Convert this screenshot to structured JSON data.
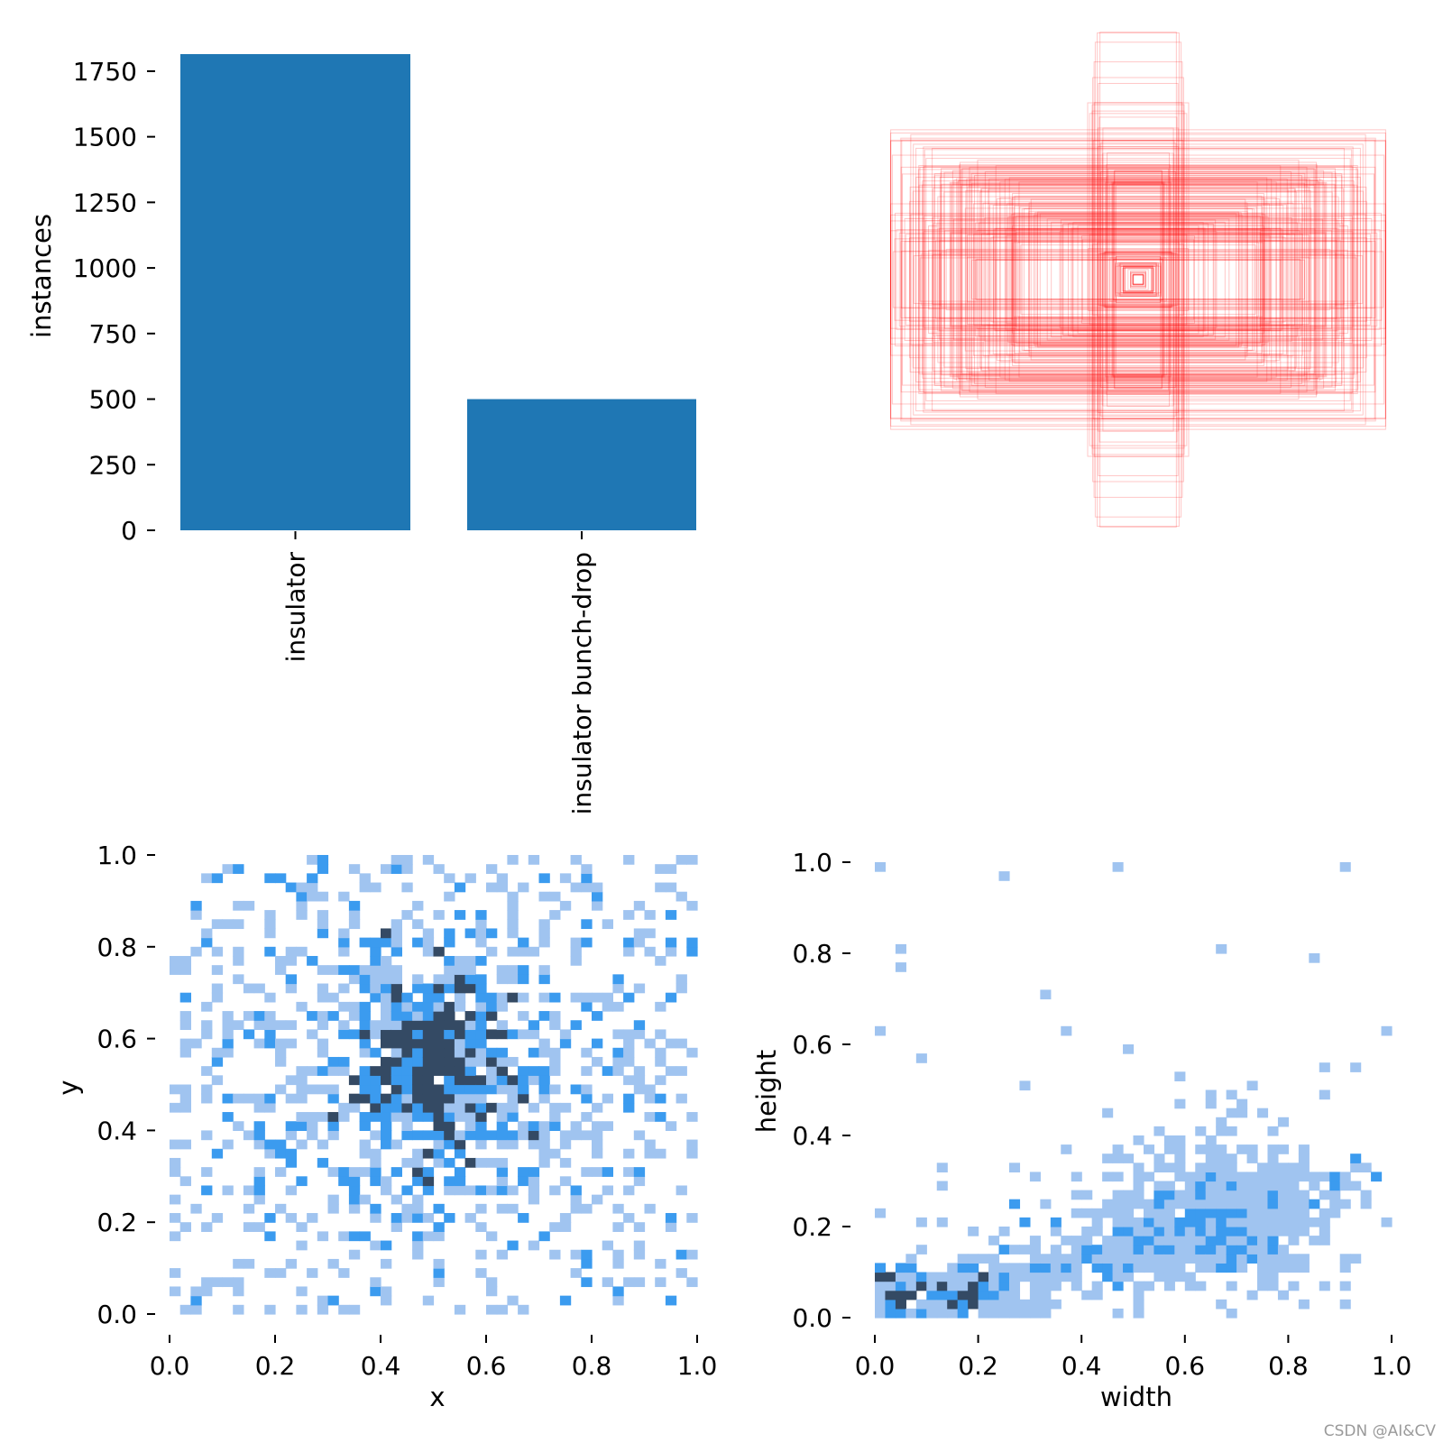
{
  "colors": {
    "bar": "#1f77b4",
    "box": "#ff0000",
    "hist_light": "#a0c4f0",
    "hist_mid": "#3b9bef",
    "hist_dark": "#344a64"
  },
  "watermark": "CSDN @AI&CV",
  "chart_data": [
    {
      "type": "bar",
      "title": "",
      "xlabel": "",
      "ylabel": "instances",
      "categories": [
        "insulator",
        "insulator bunch-drop"
      ],
      "values": [
        1815,
        500
      ],
      "ylim": [
        0,
        1815
      ],
      "yticks": [
        0,
        250,
        500,
        750,
        1000,
        1250,
        1500,
        1750
      ],
      "ytick_labels": [
        "0",
        "250",
        "500",
        "750",
        "1000",
        "1250",
        "1500",
        "1750"
      ],
      "grid": false
    },
    {
      "type": "heatmap",
      "title": "",
      "description_type": "bounding-box overlay (labels.jpg style), boxes centered, width/height in normalized units",
      "boxes": [
        [
          0.94,
          0.56
        ],
        [
          0.84,
          0.48
        ],
        [
          0.88,
          0.52
        ],
        [
          0.78,
          0.44
        ],
        [
          0.72,
          0.4
        ],
        [
          0.66,
          0.42
        ],
        [
          0.62,
          0.36
        ],
        [
          0.56,
          0.32
        ],
        [
          0.52,
          0.3
        ],
        [
          0.46,
          0.28
        ],
        [
          0.4,
          0.26
        ],
        [
          0.36,
          0.24
        ],
        [
          0.3,
          0.22
        ],
        [
          0.26,
          0.2
        ],
        [
          0.22,
          0.16
        ],
        [
          0.18,
          0.14
        ],
        [
          0.14,
          0.1
        ],
        [
          0.1,
          0.08
        ],
        [
          0.08,
          0.06
        ],
        [
          0.06,
          0.05
        ],
        [
          0.04,
          0.04
        ],
        [
          0.03,
          0.03
        ],
        [
          0.02,
          0.02
        ],
        [
          0.17,
          0.94
        ],
        [
          0.18,
          0.8
        ],
        [
          0.2,
          0.7
        ],
        [
          0.16,
          0.6
        ],
        [
          0.14,
          0.5
        ],
        [
          0.12,
          0.44
        ],
        [
          0.1,
          0.38
        ],
        [
          0.6,
          0.18
        ],
        [
          0.7,
          0.2
        ],
        [
          0.8,
          0.22
        ],
        [
          0.9,
          0.26
        ],
        [
          0.98,
          0.3
        ],
        [
          0.5,
          0.16
        ],
        [
          0.64,
          0.08
        ],
        [
          0.76,
          0.12
        ],
        [
          0.86,
          0.1
        ],
        [
          0.92,
          0.18
        ]
      ]
    },
    {
      "type": "heatmap",
      "title": "",
      "xlabel": "x",
      "ylabel": "y",
      "xlim": [
        0,
        1
      ],
      "ylim": [
        0,
        1
      ],
      "xticks": [
        0.0,
        0.2,
        0.4,
        0.6,
        0.8,
        1.0
      ],
      "xtick_labels": [
        "0.0",
        "0.2",
        "0.4",
        "0.6",
        "0.8",
        "1.0"
      ],
      "yticks": [
        0.0,
        0.2,
        0.4,
        0.6,
        0.8,
        1.0
      ],
      "ytick_labels": [
        "0.0",
        "0.2",
        "0.4",
        "0.6",
        "0.8",
        "1.0"
      ],
      "bins": 50,
      "density_peak": [
        0.5,
        0.57
      ],
      "grid": false
    },
    {
      "type": "heatmap",
      "title": "",
      "xlabel": "width",
      "ylabel": "height",
      "xlim": [
        0,
        1
      ],
      "ylim": [
        0,
        1
      ],
      "xticks": [
        0.0,
        0.2,
        0.4,
        0.6,
        0.8,
        1.0
      ],
      "xtick_labels": [
        "0.0",
        "0.2",
        "0.4",
        "0.6",
        "0.8",
        "1.0"
      ],
      "yticks": [
        0.0,
        0.2,
        0.4,
        0.6,
        0.8,
        1.0
      ],
      "ytick_labels": [
        "0.0",
        "0.2",
        "0.4",
        "0.6",
        "0.8",
        "1.0"
      ],
      "bins": 50,
      "density_peaks": [
        [
          0.05,
          0.05
        ],
        [
          0.19,
          0.05
        ],
        [
          0.63,
          0.21
        ]
      ],
      "grid": false
    }
  ]
}
